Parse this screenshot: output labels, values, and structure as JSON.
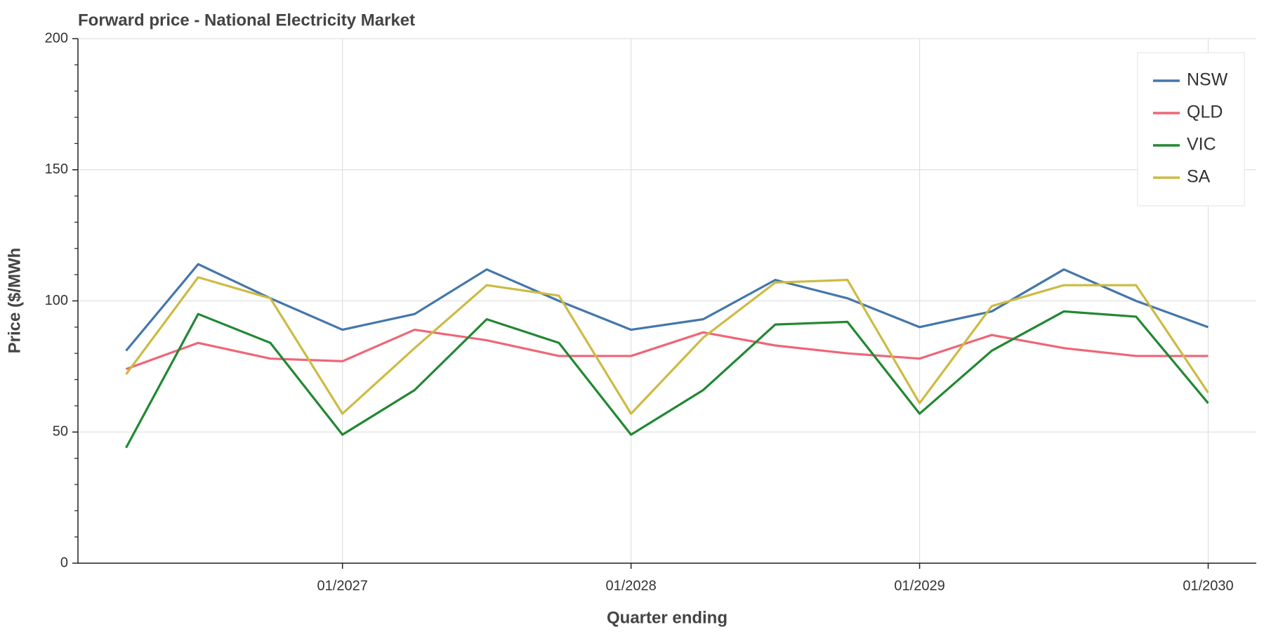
{
  "chart_data": {
    "type": "line",
    "title": "Forward price - National Electricity Market",
    "x_label": "Quarter ending",
    "y_label": "Price ($/MWh",
    "x": [
      "2026-04",
      "2026-07",
      "2026-10",
      "2027-01",
      "2027-04",
      "2027-07",
      "2027-10",
      "2028-01",
      "2028-04",
      "2028-07",
      "2028-10",
      "2029-01",
      "2029-04",
      "2029-07",
      "2029-10",
      "2030-01"
    ],
    "series": [
      {
        "name": "NSW",
        "color": "#4477aa",
        "values": [
          81,
          114,
          101,
          89,
          95,
          112,
          100,
          89,
          93,
          108,
          101,
          90,
          96,
          112,
          100,
          90
        ]
      },
      {
        "name": "QLD",
        "color": "#ee6677",
        "values": [
          74,
          84,
          78,
          77,
          89,
          85,
          79,
          79,
          88,
          83,
          80,
          78,
          87,
          82,
          79,
          79
        ]
      },
      {
        "name": "VIC",
        "color": "#228833",
        "values": [
          44,
          95,
          84,
          49,
          66,
          93,
          84,
          49,
          66,
          91,
          92,
          57,
          81,
          96,
          94,
          61
        ]
      },
      {
        "name": "SA",
        "color": "#ccbb44",
        "values": [
          72,
          109,
          101,
          57,
          82,
          106,
          102,
          57,
          86,
          107,
          108,
          61,
          98,
          106,
          106,
          65
        ]
      }
    ],
    "xlim": [
      "2026-02",
      "2030-03"
    ],
    "xticks": [
      {
        "value": "2027-01",
        "label": "01/2027"
      },
      {
        "value": "2028-01",
        "label": "01/2028"
      },
      {
        "value": "2029-01",
        "label": "01/2029"
      },
      {
        "value": "2030-01",
        "label": "01/2030"
      }
    ],
    "ylim": [
      0,
      200
    ],
    "yticks": [
      0,
      50,
      100,
      150,
      200
    ],
    "yminorticks": [
      10,
      20,
      30,
      40,
      60,
      70,
      80,
      90,
      110,
      120,
      130,
      140,
      160,
      170,
      180,
      190
    ],
    "grid": true,
    "legend": "top-right"
  }
}
